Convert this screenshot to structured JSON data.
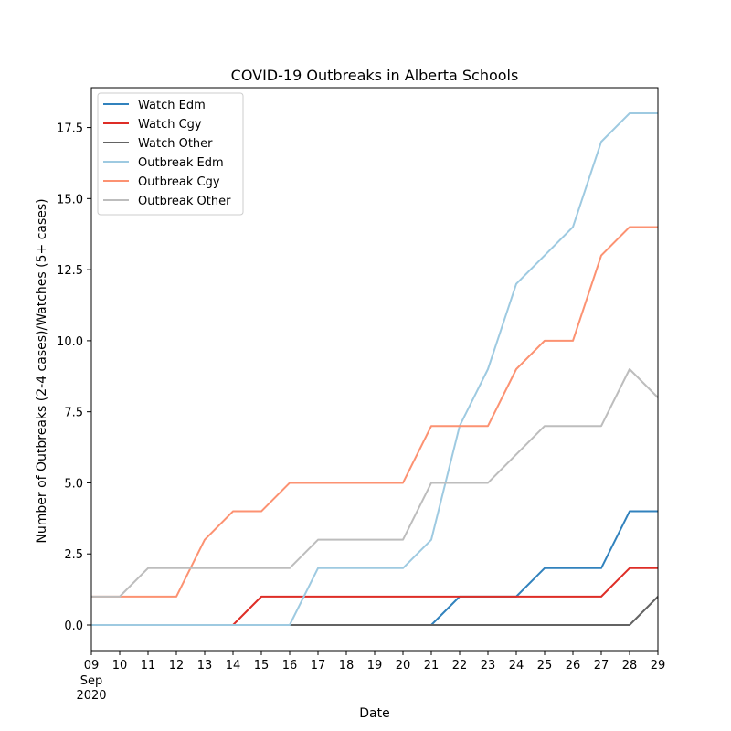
{
  "chart_data": {
    "type": "line",
    "title": "COVID-19 Outbreaks in Alberta Schools",
    "xlabel": "Date",
    "ylabel": "Number of Outbreaks (2-4 cases)/Watches (5+ cases)",
    "x": [
      "2020-09-09",
      "2020-09-10",
      "2020-09-11",
      "2020-09-12",
      "2020-09-13",
      "2020-09-14",
      "2020-09-15",
      "2020-09-16",
      "2020-09-17",
      "2020-09-18",
      "2020-09-19",
      "2020-09-20",
      "2020-09-21",
      "2020-09-22",
      "2020-09-23",
      "2020-09-24",
      "2020-09-25",
      "2020-09-26",
      "2020-09-27",
      "2020-09-28",
      "2020-09-29"
    ],
    "x_tick_labels": [
      "09",
      "10",
      "11",
      "12",
      "13",
      "14",
      "15",
      "16",
      "17",
      "18",
      "19",
      "20",
      "21",
      "22",
      "23",
      "24",
      "25",
      "26",
      "27",
      "28",
      "29"
    ],
    "x_tick_sublabel": [
      "Sep",
      "2020"
    ],
    "xlim": [
      "2020-09-09",
      "2020-09-29"
    ],
    "ylim": [
      -0.9,
      18.9
    ],
    "y_ticks": [
      0.0,
      2.5,
      5.0,
      7.5,
      10.0,
      12.5,
      15.0,
      17.5
    ],
    "y_tick_labels": [
      "0.0",
      "2.5",
      "5.0",
      "7.5",
      "10.0",
      "12.5",
      "15.0",
      "17.5"
    ],
    "grid": false,
    "legend_position": "upper-left",
    "series": [
      {
        "name": "Watch Edm",
        "color": "#3182bd",
        "values": [
          0,
          0,
          0,
          0,
          0,
          0,
          0,
          0,
          0,
          0,
          0,
          0,
          0,
          1,
          1,
          1,
          2,
          2,
          2,
          4,
          4
        ]
      },
      {
        "name": "Watch Cgy",
        "color": "#de2d26",
        "values": [
          0,
          0,
          0,
          0,
          0,
          0,
          1,
          1,
          1,
          1,
          1,
          1,
          1,
          1,
          1,
          1,
          1,
          1,
          1,
          2,
          2
        ]
      },
      {
        "name": "Watch Other",
        "color": "#636363",
        "values": [
          0,
          0,
          0,
          0,
          0,
          0,
          0,
          0,
          0,
          0,
          0,
          0,
          0,
          0,
          0,
          0,
          0,
          0,
          0,
          0,
          1
        ]
      },
      {
        "name": "Outbreak Edm",
        "color": "#9ecae1",
        "values": [
          0,
          0,
          0,
          0,
          0,
          0,
          0,
          0,
          2,
          2,
          2,
          2,
          3,
          7,
          9,
          12,
          13,
          14,
          17,
          18,
          18
        ]
      },
      {
        "name": "Outbreak Cgy",
        "color": "#fc9272",
        "values": [
          1,
          1,
          1,
          1,
          3,
          4,
          4,
          5,
          5,
          5,
          5,
          5,
          7,
          7,
          7,
          9,
          10,
          10,
          13,
          14,
          14
        ]
      },
      {
        "name": "Outbreak Other",
        "color": "#bdbdbd",
        "values": [
          1,
          1,
          2,
          2,
          2,
          2,
          2,
          2,
          3,
          3,
          3,
          3,
          5,
          5,
          5,
          6,
          7,
          7,
          7,
          9,
          8
        ]
      }
    ]
  }
}
